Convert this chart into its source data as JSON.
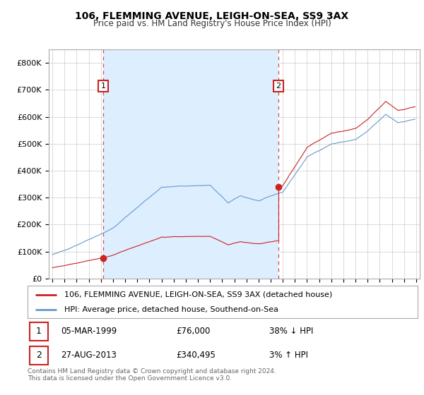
{
  "title": "106, FLEMMING AVENUE, LEIGH-ON-SEA, SS9 3AX",
  "subtitle": "Price paid vs. HM Land Registry's House Price Index (HPI)",
  "bg_color": "#ffffff",
  "plot_bg_color": "#ffffff",
  "shade_color": "#ddeeff",
  "grid_color": "#cccccc",
  "red_color": "#cc2222",
  "blue_color": "#6699cc",
  "annotation1_date": "05-MAR-1999",
  "annotation1_price": "£76,000",
  "annotation1_hpi": "38% ↓ HPI",
  "annotation2_date": "27-AUG-2013",
  "annotation2_price": "£340,495",
  "annotation2_hpi": "3% ↑ HPI",
  "legend_line1": "106, FLEMMING AVENUE, LEIGH-ON-SEA, SS9 3AX (detached house)",
  "legend_line2": "HPI: Average price, detached house, Southend-on-Sea",
  "footer": "Contains HM Land Registry data © Crown copyright and database right 2024.\nThis data is licensed under the Open Government Licence v3.0.",
  "ylim_max": 850000,
  "sale1_year": 1999.18,
  "sale1_price": 76000,
  "sale2_year": 2013.65,
  "sale2_price": 340495
}
